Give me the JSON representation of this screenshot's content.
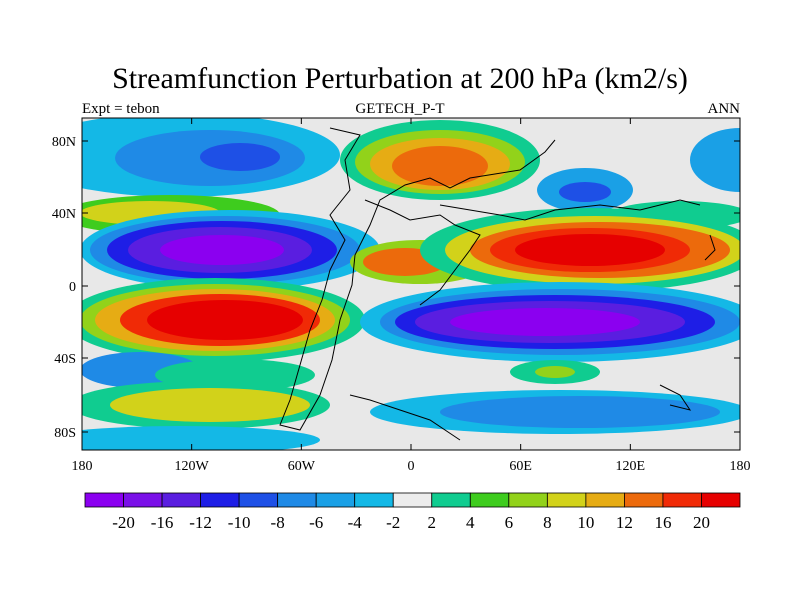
{
  "title": "Streamfunction Perturbation at 200 hPa (km2/s)",
  "subtitle_left": "Expt = tebon",
  "subtitle_center": "GETECH_P-T",
  "subtitle_right": "ANN",
  "map": {
    "lon_labels": [
      "180",
      "120W",
      "60W",
      "0",
      "60E",
      "120E",
      "180"
    ],
    "lat_labels": [
      "80N",
      "40N",
      "0",
      "40S",
      "80S"
    ]
  },
  "colorbar": {
    "labels": [
      "-20",
      "-16",
      "-12",
      "-10",
      "-8",
      "-6",
      "-4",
      "-2",
      "2",
      "4",
      "6",
      "8",
      "10",
      "12",
      "16",
      "20"
    ],
    "colors": [
      "#8b00f0",
      "#7a10e8",
      "#5a1ee0",
      "#1e1ee6",
      "#1e50e6",
      "#1f8ae6",
      "#1aa0e6",
      "#14b8e6",
      "#ececec",
      "#10cc90",
      "#3ecc1e",
      "#92d21a",
      "#d2d21a",
      "#e6ac14",
      "#ec6a0c",
      "#f02a06",
      "#e60000"
    ]
  }
}
